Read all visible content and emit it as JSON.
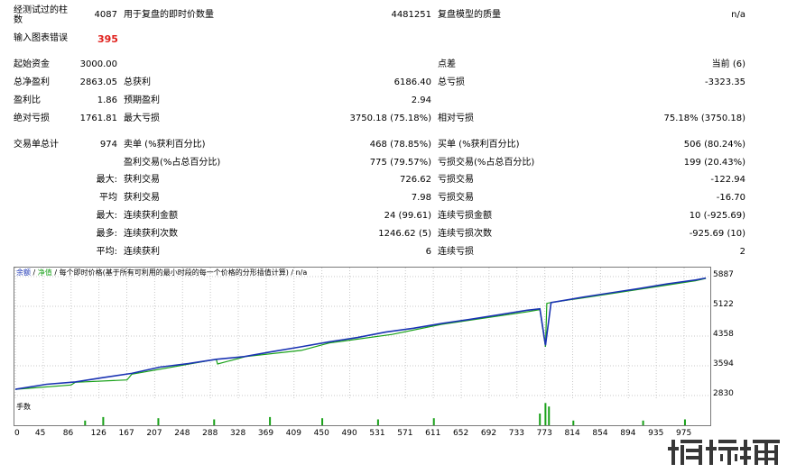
{
  "summary": {
    "row1": {
      "l1": "经测试过的柱",
      "l1b": "数",
      "v1": "4087",
      "l2": "用于复盘的即时价数量",
      "v2": "4481251",
      "l3": "复盘模型的质量",
      "v3": "n/a"
    },
    "row2": {
      "l1": "输入图表错误",
      "v1": "395"
    },
    "row3": {
      "l1": "起始资金",
      "v1": "3000.00",
      "l3": "点差",
      "v3": "当前 (6)"
    },
    "row4": {
      "l1": "总净盈利",
      "v1": "2863.05",
      "l2": "总获利",
      "v2": "6186.40",
      "l3": "总亏损",
      "v3": "-3323.35"
    },
    "row5": {
      "l1": "盈利比",
      "v1": "1.86",
      "l2": "预期盈利",
      "v2": "2.94"
    },
    "row6": {
      "l1": "绝对亏损",
      "v1": "1761.81",
      "l2": "最大亏损",
      "v2": "3750.18 (75.18%)",
      "l3": "相对亏损",
      "v3": "75.18% (3750.18)"
    },
    "row7": {
      "l1": "交易单总计",
      "v1": "974",
      "l2": "卖单 (%获利百分比)",
      "v2": "468 (78.85%)",
      "l3": "买单 (%获利百分比)",
      "v3": "506 (80.24%)"
    },
    "row8": {
      "l2": "盈利交易(%占总百分比)",
      "v2": "775 (79.57%)",
      "l3": "亏损交易(%占总百分比)",
      "v3": "199 (20.43%)"
    },
    "row9": {
      "q": "最大:",
      "l2": "获利交易",
      "v2": "726.62",
      "l3": "亏损交易",
      "v3": "-122.94"
    },
    "row10": {
      "q": "平均",
      "l2": "获利交易",
      "v2": "7.98",
      "l3": "亏损交易",
      "v3": "-16.70"
    },
    "row11": {
      "q": "最大:",
      "l2": "连续获利金额",
      "v2": "24 (99.61)",
      "l3": "连续亏损金额",
      "v3": "10 (-925.69)"
    },
    "row12": {
      "q": "最多:",
      "l2": "连续获利次数",
      "v2": "1246.62 (5)",
      "l3": "连续亏损次数",
      "v3": "-925.69 (10)"
    },
    "row13": {
      "q": "平均:",
      "l2": "连续获利",
      "v2": "6",
      "l3": "连续亏损",
      "v3": "2"
    }
  },
  "chart": {
    "legend_balance": "余额",
    "legend_sep": "/",
    "legend_equity": "净值",
    "legend_rest": "/ 每个即时价格(基于所有可利用的最小时段的每一个价格的分形插值计算) / n/a",
    "volume_label": "手数",
    "colors": {
      "balance": "#1a33b3",
      "equity": "#19a119",
      "volume": "#19a119"
    }
  },
  "chart_data": {
    "type": "line",
    "y_ticks": [
      "5887",
      "5122",
      "4358",
      "3594",
      "2830"
    ],
    "x_ticks": [
      "0",
      "45",
      "86",
      "126",
      "167",
      "207",
      "248",
      "288",
      "328",
      "369",
      "409",
      "450",
      "490",
      "531",
      "571",
      "611",
      "652",
      "692",
      "733",
      "773",
      "814",
      "854",
      "894",
      "935",
      "975"
    ],
    "ylim": [
      2830,
      5887
    ],
    "xlim": [
      0,
      995
    ],
    "series": [
      {
        "name": "余额",
        "values": [
          [
            0,
            2990
          ],
          [
            45,
            3120
          ],
          [
            86,
            3180
          ],
          [
            126,
            3290
          ],
          [
            167,
            3400
          ],
          [
            207,
            3560
          ],
          [
            248,
            3650
          ],
          [
            288,
            3760
          ],
          [
            328,
            3830
          ],
          [
            369,
            3960
          ],
          [
            409,
            4080
          ],
          [
            450,
            4210
          ],
          [
            490,
            4320
          ],
          [
            531,
            4460
          ],
          [
            571,
            4560
          ],
          [
            611,
            4680
          ],
          [
            652,
            4790
          ],
          [
            692,
            4900
          ],
          [
            733,
            5020
          ],
          [
            752,
            5060
          ],
          [
            760,
            4120
          ],
          [
            768,
            5220
          ],
          [
            814,
            5360
          ],
          [
            854,
            5470
          ],
          [
            894,
            5580
          ],
          [
            935,
            5700
          ],
          [
            975,
            5800
          ],
          [
            990,
            5850
          ]
        ]
      },
      {
        "name": "净值",
        "values": [
          [
            0,
            2990
          ],
          [
            80,
            3100
          ],
          [
            86,
            3170
          ],
          [
            160,
            3230
          ],
          [
            167,
            3380
          ],
          [
            288,
            3760
          ],
          [
            290,
            3640
          ],
          [
            330,
            3830
          ],
          [
            410,
            3990
          ],
          [
            450,
            4180
          ],
          [
            540,
            4400
          ],
          [
            611,
            4660
          ],
          [
            733,
            4980
          ],
          [
            752,
            5040
          ],
          [
            760,
            4080
          ],
          [
            762,
            5200
          ],
          [
            768,
            5220
          ],
          [
            814,
            5340
          ],
          [
            975,
            5780
          ],
          [
            990,
            5840
          ]
        ]
      }
    ],
    "volume": [
      [
        100,
        0.2
      ],
      [
        126,
        0.35
      ],
      [
        205,
        0.3
      ],
      [
        285,
        0.25
      ],
      [
        365,
        0.35
      ],
      [
        440,
        0.3
      ],
      [
        520,
        0.25
      ],
      [
        600,
        0.3
      ],
      [
        752,
        0.5
      ],
      [
        760,
        0.95
      ],
      [
        765,
        0.8
      ],
      [
        800,
        0.2
      ],
      [
        900,
        0.2
      ],
      [
        960,
        0.25
      ]
    ]
  }
}
